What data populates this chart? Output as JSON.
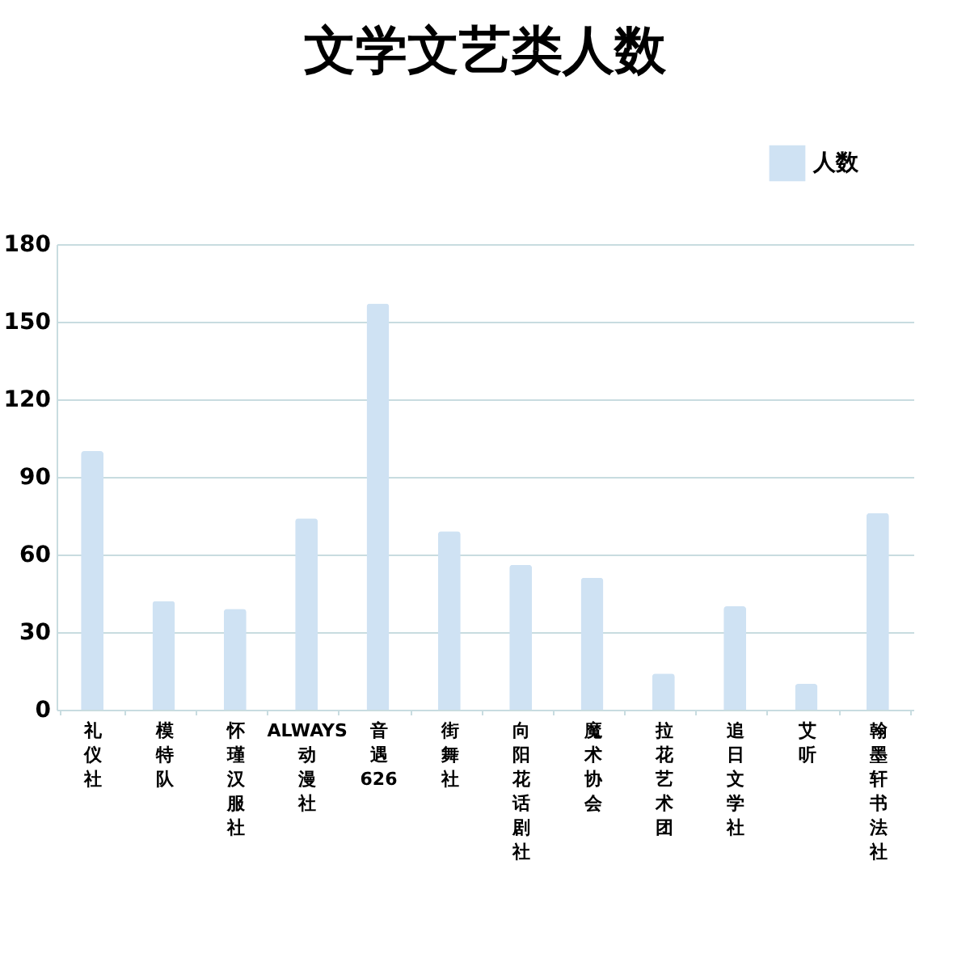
{
  "chart_data": {
    "type": "bar",
    "title": "文学文艺类人数",
    "categories": [
      "礼仪社",
      "模特队",
      "怀瑾汉服社",
      "ALWAYS动漫社",
      "音遇626",
      "街舞社",
      "向阳花话剧社",
      "魔术协会",
      "拉花艺术团",
      "追日文学社",
      "艾听",
      "翰墨轩书法社"
    ],
    "series": [
      {
        "name": "人数",
        "color": "#cfe2f3",
        "values": [
          100,
          42,
          39,
          74,
          157,
          69,
          56,
          51,
          14,
          40,
          10,
          76
        ]
      }
    ],
    "ylim": [
      0,
      180
    ],
    "yticks": [
      0,
      30,
      60,
      90,
      120,
      150,
      180
    ],
    "grid": "y",
    "legend": "top right"
  }
}
